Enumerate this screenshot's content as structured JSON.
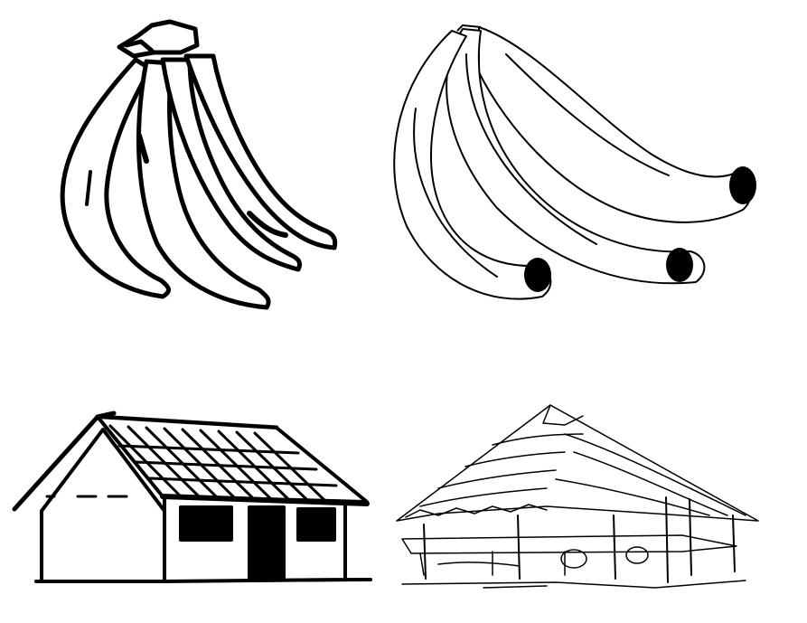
{
  "colors": {
    "background": "#ffffff",
    "ink": "#000000"
  },
  "illustrations": [
    {
      "name": "banana-bunch-bold",
      "description": ""
    },
    {
      "name": "banana-bunch-fine",
      "description": ""
    },
    {
      "name": "tiled-roof-house",
      "description": ""
    },
    {
      "name": "thatched-roof-hut",
      "description": ""
    }
  ]
}
